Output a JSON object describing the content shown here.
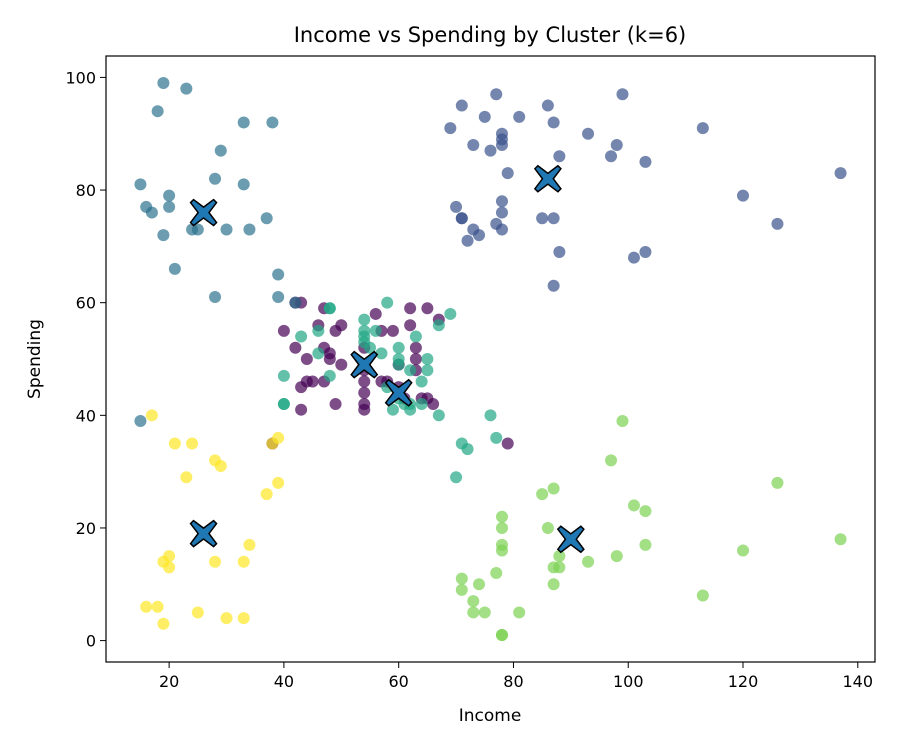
{
  "chart_data": {
    "type": "scatter",
    "title": "Income vs Spending by Cluster (k=6)",
    "xlabel": "Income",
    "ylabel": "Spending",
    "xlim": [
      9,
      143
    ],
    "ylim": [
      -3.8,
      103.8
    ],
    "xticks": [
      20,
      40,
      60,
      80,
      100,
      120,
      140
    ],
    "yticks": [
      0,
      20,
      40,
      60,
      80,
      100
    ],
    "grid": false,
    "legend": "none",
    "centroid_color": "#1f77b4",
    "clusters": [
      {
        "color": "#440154",
        "centroid": [
          54,
          49
        ],
        "points": [
          [
            38,
            35
          ],
          [
            40,
            55
          ],
          [
            42,
            52
          ],
          [
            42,
            60
          ],
          [
            43,
            45
          ],
          [
            43,
            41
          ],
          [
            43,
            60
          ],
          [
            44,
            46
          ],
          [
            44,
            50
          ],
          [
            45,
            46
          ],
          [
            46,
            56
          ],
          [
            47,
            52
          ],
          [
            47,
            46
          ],
          [
            47,
            59
          ],
          [
            48,
            51
          ],
          [
            48,
            50
          ],
          [
            49,
            55
          ],
          [
            49,
            42
          ],
          [
            50,
            56
          ],
          [
            50,
            49
          ],
          [
            54,
            41
          ],
          [
            54,
            42
          ],
          [
            54,
            44
          ],
          [
            54,
            46
          ],
          [
            54,
            48
          ],
          [
            54,
            52
          ],
          [
            56,
            58
          ],
          [
            57,
            46
          ],
          [
            57,
            55
          ],
          [
            58,
            46
          ],
          [
            59,
            55
          ],
          [
            60,
            45
          ],
          [
            60,
            49
          ],
          [
            61,
            43
          ],
          [
            62,
            56
          ],
          [
            62,
            59
          ],
          [
            63,
            48
          ],
          [
            63,
            52
          ],
          [
            63,
            50
          ],
          [
            64,
            43
          ],
          [
            65,
            59
          ],
          [
            65,
            43
          ],
          [
            66,
            42
          ],
          [
            67,
            57
          ],
          [
            79,
            35
          ]
        ]
      },
      {
        "color": "#3b528b",
        "centroid": [
          86,
          82
        ],
        "points": [
          [
            69,
            91
          ],
          [
            70,
            77
          ],
          [
            71,
            95
          ],
          [
            71,
            75
          ],
          [
            71,
            75
          ],
          [
            72,
            71
          ],
          [
            73,
            88
          ],
          [
            73,
            73
          ],
          [
            74,
            72
          ],
          [
            75,
            93
          ],
          [
            76,
            87
          ],
          [
            77,
            97
          ],
          [
            77,
            74
          ],
          [
            78,
            90
          ],
          [
            78,
            88
          ],
          [
            78,
            89
          ],
          [
            78,
            78
          ],
          [
            78,
            73
          ],
          [
            78,
            76
          ],
          [
            79,
            83
          ],
          [
            81,
            93
          ],
          [
            85,
            75
          ],
          [
            86,
            95
          ],
          [
            87,
            75
          ],
          [
            87,
            63
          ],
          [
            87,
            92
          ],
          [
            88,
            86
          ],
          [
            88,
            69
          ],
          [
            93,
            90
          ],
          [
            97,
            86
          ],
          [
            98,
            88
          ],
          [
            99,
            97
          ],
          [
            101,
            68
          ],
          [
            103,
            85
          ],
          [
            103,
            69
          ],
          [
            113,
            91
          ],
          [
            120,
            79
          ],
          [
            126,
            74
          ],
          [
            137,
            83
          ]
        ]
      },
      {
        "color": "#2c728e",
        "centroid": [
          26,
          76
        ],
        "points": [
          [
            15,
            39
          ],
          [
            15,
            81
          ],
          [
            16,
            77
          ],
          [
            17,
            76
          ],
          [
            18,
            94
          ],
          [
            19,
            99
          ],
          [
            19,
            72
          ],
          [
            20,
            77
          ],
          [
            20,
            79
          ],
          [
            21,
            66
          ],
          [
            23,
            98
          ],
          [
            24,
            73
          ],
          [
            25,
            73
          ],
          [
            28,
            82
          ],
          [
            28,
            61
          ],
          [
            29,
            87
          ],
          [
            30,
            73
          ],
          [
            33,
            92
          ],
          [
            33,
            81
          ],
          [
            34,
            73
          ],
          [
            37,
            75
          ],
          [
            38,
            92
          ],
          [
            39,
            61
          ],
          [
            39,
            65
          ],
          [
            42,
            60
          ]
        ]
      },
      {
        "color": "#21a685",
        "centroid": [
          60,
          44
        ],
        "points": [
          [
            40,
            47
          ],
          [
            40,
            42
          ],
          [
            40,
            42
          ],
          [
            43,
            54
          ],
          [
            46,
            51
          ],
          [
            46,
            55
          ],
          [
            48,
            59
          ],
          [
            48,
            47
          ],
          [
            48,
            59
          ],
          [
            54,
            55
          ],
          [
            54,
            57
          ],
          [
            54,
            54
          ],
          [
            54,
            53
          ],
          [
            55,
            52
          ],
          [
            56,
            55
          ],
          [
            57,
            51
          ],
          [
            58,
            60
          ],
          [
            58,
            45
          ],
          [
            59,
            41
          ],
          [
            60,
            43
          ],
          [
            60,
            50
          ],
          [
            60,
            52
          ],
          [
            60,
            49
          ],
          [
            61,
            42
          ],
          [
            62,
            41
          ],
          [
            62,
            48
          ],
          [
            62,
            42
          ],
          [
            63,
            54
          ],
          [
            64,
            46
          ],
          [
            64,
            42
          ],
          [
            65,
            50
          ],
          [
            65,
            48
          ],
          [
            67,
            40
          ],
          [
            67,
            56
          ],
          [
            69,
            58
          ],
          [
            70,
            29
          ],
          [
            71,
            35
          ],
          [
            72,
            34
          ],
          [
            76,
            40
          ],
          [
            77,
            36
          ]
        ]
      },
      {
        "color": "#7ad151",
        "centroid": [
          90,
          18
        ],
        "points": [
          [
            71,
            11
          ],
          [
            71,
            9
          ],
          [
            73,
            5
          ],
          [
            73,
            7
          ],
          [
            74,
            10
          ],
          [
            75,
            5
          ],
          [
            77,
            12
          ],
          [
            78,
            22
          ],
          [
            78,
            17
          ],
          [
            78,
            16
          ],
          [
            78,
            1
          ],
          [
            78,
            1
          ],
          [
            78,
            20
          ],
          [
            81,
            5
          ],
          [
            85,
            26
          ],
          [
            86,
            20
          ],
          [
            87,
            10
          ],
          [
            87,
            27
          ],
          [
            87,
            13
          ],
          [
            88,
            13
          ],
          [
            88,
            15
          ],
          [
            93,
            14
          ],
          [
            97,
            32
          ],
          [
            98,
            15
          ],
          [
            99,
            39
          ],
          [
            101,
            24
          ],
          [
            103,
            23
          ],
          [
            103,
            17
          ],
          [
            113,
            8
          ],
          [
            120,
            16
          ],
          [
            126,
            28
          ],
          [
            137,
            18
          ]
        ]
      },
      {
        "color": "#fde725",
        "centroid": [
          26,
          19
        ],
        "points": [
          [
            16,
            6
          ],
          [
            17,
            40
          ],
          [
            18,
            6
          ],
          [
            19,
            3
          ],
          [
            19,
            14
          ],
          [
            20,
            15
          ],
          [
            20,
            13
          ],
          [
            21,
            35
          ],
          [
            23,
            29
          ],
          [
            24,
            35
          ],
          [
            25,
            5
          ],
          [
            28,
            14
          ],
          [
            28,
            32
          ],
          [
            29,
            31
          ],
          [
            30,
            4
          ],
          [
            33,
            4
          ],
          [
            33,
            14
          ],
          [
            34,
            17
          ],
          [
            37,
            26
          ],
          [
            38,
            35
          ],
          [
            39,
            36
          ],
          [
            39,
            28
          ]
        ]
      }
    ]
  }
}
